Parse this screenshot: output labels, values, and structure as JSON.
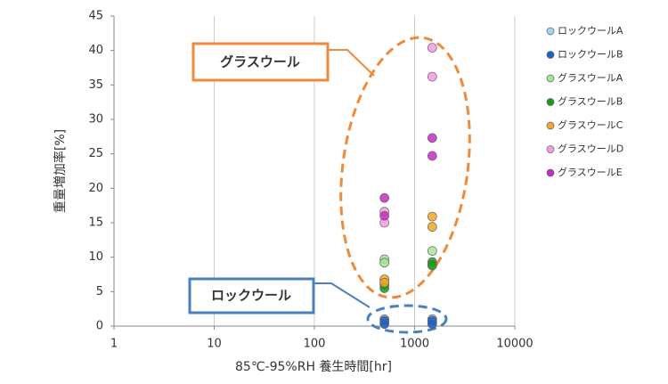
{
  "chart_data": {
    "type": "scatter",
    "xlabel": "85℃-95%RH 養生時間[hr]",
    "ylabel": "重量増加率[%]",
    "xscale": "log",
    "xlim": [
      1,
      10000
    ],
    "xticks": [
      1,
      10,
      100,
      1000,
      10000
    ],
    "ylim": [
      0,
      45
    ],
    "yticks": [
      0,
      5,
      10,
      15,
      20,
      25,
      30,
      35,
      40,
      45
    ],
    "grid": "x",
    "legend": "right",
    "series": [
      {
        "name": "ロックウールA",
        "color": "#9fd4f4",
        "x": [
          500,
          500,
          1500,
          1500
        ],
        "y": [
          1.0,
          0.5,
          1.0,
          0.5
        ]
      },
      {
        "name": "ロックウールB",
        "color": "#1f5fc4",
        "x": [
          500,
          500,
          1500,
          1500
        ],
        "y": [
          0.8,
          0.3,
          0.8,
          0.3
        ]
      },
      {
        "name": "グラスウールA",
        "color": "#a6e495",
        "x": [
          500,
          500,
          1500,
          1500
        ],
        "y": [
          9.7,
          9.2,
          10.9,
          8.9
        ]
      },
      {
        "name": "グラスウールB",
        "color": "#1a9a1a",
        "x": [
          500,
          500,
          1500,
          1500
        ],
        "y": [
          6.0,
          5.5,
          9.3,
          8.8
        ]
      },
      {
        "name": "グラスウールC",
        "color": "#f5a623",
        "x": [
          500,
          500,
          1500,
          1500
        ],
        "y": [
          6.8,
          6.3,
          15.9,
          14.4
        ]
      },
      {
        "name": "グラスウールD",
        "color": "#f39ae8",
        "x": [
          500,
          500,
          1500,
          1500
        ],
        "y": [
          16.6,
          15.0,
          40.4,
          36.2
        ]
      },
      {
        "name": "グラスウールE",
        "color": "#c42cc4",
        "x": [
          500,
          500,
          1500,
          1500
        ],
        "y": [
          18.6,
          16.0,
          27.3,
          24.7
        ]
      }
    ],
    "annotations": [
      {
        "text": "グラスウール",
        "color": "#f0893a"
      },
      {
        "text": "ロックウール",
        "color": "#4a7fc0"
      }
    ]
  }
}
